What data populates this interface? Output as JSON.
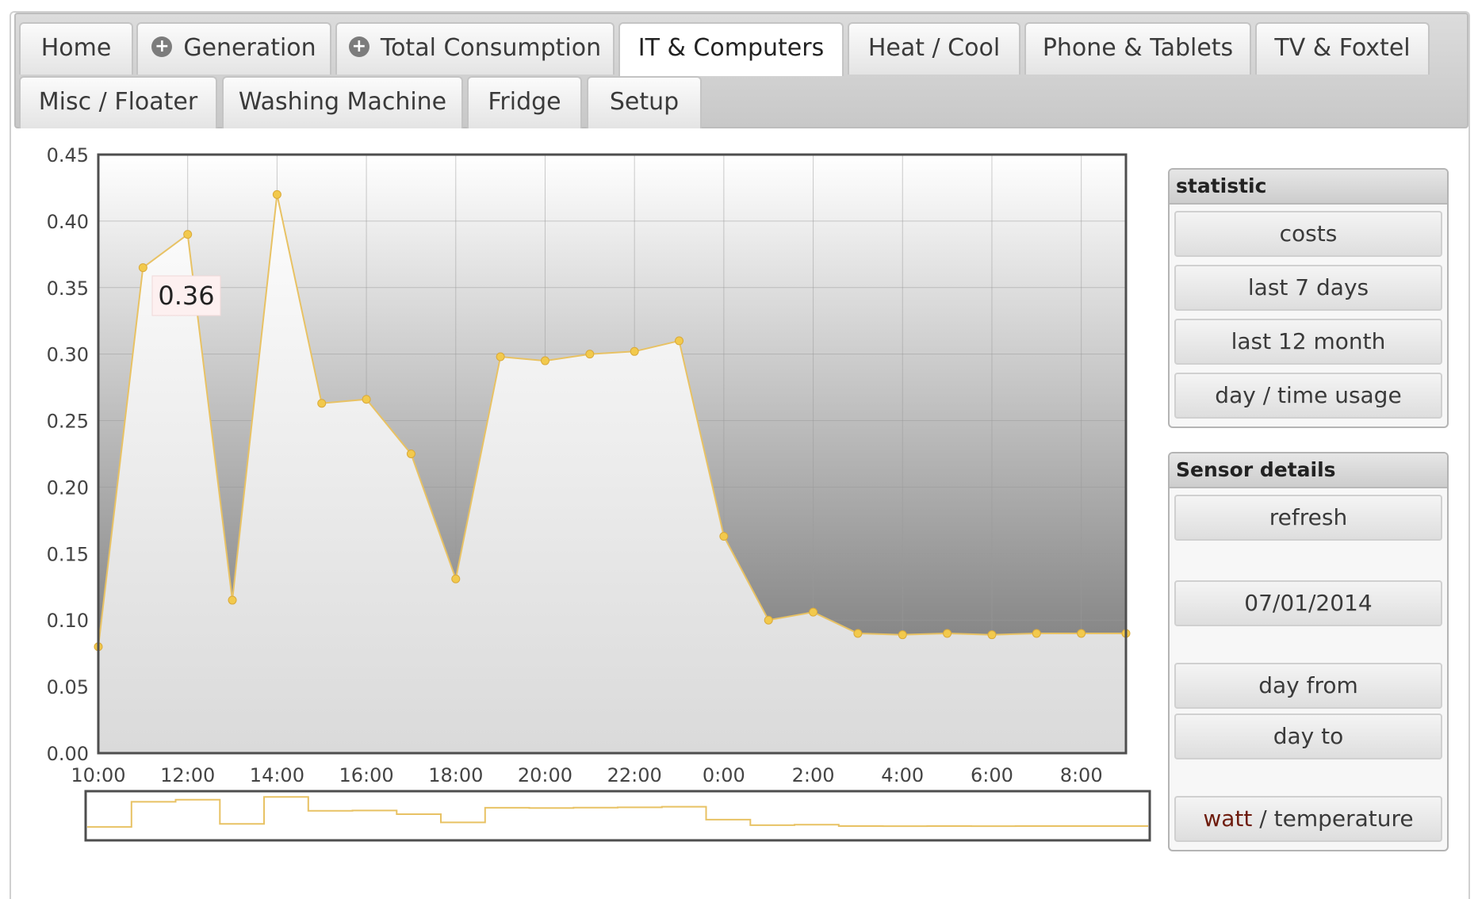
{
  "tabs": [
    {
      "label": "Home",
      "plus": false,
      "active": false
    },
    {
      "label": "Generation",
      "plus": true,
      "active": false
    },
    {
      "label": "Total Consumption",
      "plus": true,
      "active": false
    },
    {
      "label": "IT & Computers",
      "plus": false,
      "active": true
    },
    {
      "label": "Heat / Cool",
      "plus": false,
      "active": false
    },
    {
      "label": "Phone & Tablets",
      "plus": false,
      "active": false
    },
    {
      "label": "TV & Foxtel",
      "plus": false,
      "active": false
    },
    {
      "label": "Misc / Floater",
      "plus": false,
      "active": false
    },
    {
      "label": "Washing Machine",
      "plus": false,
      "active": false
    },
    {
      "label": "Fridge",
      "plus": false,
      "active": false
    },
    {
      "label": "Setup",
      "plus": false,
      "active": false
    }
  ],
  "statistic": {
    "title": "statistic",
    "buttons": [
      "costs",
      "last 7 days",
      "last 12 month",
      "day / time usage"
    ]
  },
  "sensor": {
    "title": "Sensor details",
    "refresh": "refresh",
    "date": "07/01/2014",
    "day_from": "day from",
    "day_to": "day to",
    "watt": "watt",
    "separator": " / ",
    "temperature": "temperature"
  },
  "tooltip": {
    "value": "0.36"
  },
  "colors": {
    "line": "#e8c264",
    "point": "#f2c94c",
    "active_tab": "#ffffff",
    "watt_text": "#6e1c0e"
  },
  "chart_data": {
    "type": "area",
    "x": [
      "10:00",
      "11:00",
      "12:00",
      "13:00",
      "14:00",
      "15:00",
      "16:00",
      "17:00",
      "18:00",
      "19:00",
      "20:00",
      "21:00",
      "22:00",
      "23:00",
      "0:00",
      "1:00",
      "2:00",
      "3:00",
      "4:00",
      "5:00",
      "6:00",
      "7:00",
      "8:00",
      "9:00"
    ],
    "xticks": [
      "10:00",
      "12:00",
      "14:00",
      "16:00",
      "18:00",
      "20:00",
      "22:00",
      "0:00",
      "2:00",
      "4:00",
      "6:00",
      "8:00"
    ],
    "values": [
      0.08,
      0.365,
      0.39,
      0.115,
      0.42,
      0.263,
      0.266,
      0.225,
      0.131,
      0.298,
      0.295,
      0.3,
      0.302,
      0.31,
      0.163,
      0.1,
      0.106,
      0.09,
      0.089,
      0.09,
      0.089,
      0.09,
      0.09,
      0.09
    ],
    "ylim": [
      0,
      0.45
    ],
    "yticks": [
      "0.00",
      "0.05",
      "0.10",
      "0.15",
      "0.20",
      "0.25",
      "0.30",
      "0.35",
      "0.40",
      "0.45"
    ],
    "grid": true,
    "navigator": true,
    "xlabel": "",
    "ylabel": ""
  }
}
